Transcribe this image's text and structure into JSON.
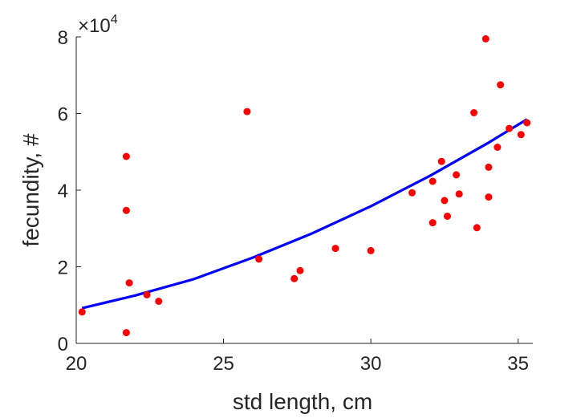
{
  "chart_data": {
    "type": "scatter",
    "title": "",
    "xlabel": "std length, cm",
    "ylabel": "fecundity, #",
    "xlim": [
      20,
      35.5
    ],
    "ylim": [
      0,
      80000
    ],
    "xticks": [
      20,
      25,
      30,
      35
    ],
    "yticks": [
      0,
      20000,
      40000,
      60000,
      80000
    ],
    "ytick_labels": [
      "0",
      "2",
      "4",
      "6",
      "8"
    ],
    "y_exponent_prefix": "×10",
    "y_exponent_power": "4",
    "grid": false,
    "legend": "none",
    "series": [
      {
        "kind": "scatter",
        "color": "#ff0000",
        "points": [
          [
            20.2,
            8200
          ],
          [
            21.7,
            2800
          ],
          [
            21.7,
            34700
          ],
          [
            21.7,
            48800
          ],
          [
            21.8,
            15800
          ],
          [
            22.4,
            12700
          ],
          [
            22.8,
            11000
          ],
          [
            25.8,
            60500
          ],
          [
            26.2,
            22000
          ],
          [
            27.4,
            16900
          ],
          [
            27.6,
            19000
          ],
          [
            28.8,
            24800
          ],
          [
            30.0,
            24200
          ],
          [
            31.4,
            39300
          ],
          [
            32.1,
            31500
          ],
          [
            32.1,
            42300
          ],
          [
            32.4,
            47500
          ],
          [
            32.5,
            37300
          ],
          [
            32.6,
            33200
          ],
          [
            32.9,
            44000
          ],
          [
            33.0,
            39000
          ],
          [
            33.5,
            60200
          ],
          [
            33.6,
            30200
          ],
          [
            33.9,
            79500
          ],
          [
            34.0,
            46000
          ],
          [
            34.0,
            38200
          ],
          [
            34.3,
            51200
          ],
          [
            34.4,
            67500
          ],
          [
            34.7,
            56100
          ],
          [
            35.1,
            54500
          ],
          [
            35.3,
            57600
          ]
        ]
      },
      {
        "kind": "line",
        "color": "#0000ff",
        "fit": "exponential",
        "points": [
          [
            20.2,
            9200
          ],
          [
            22,
            12500
          ],
          [
            24,
            16800
          ],
          [
            26,
            22400
          ],
          [
            28,
            28700
          ],
          [
            30,
            35800
          ],
          [
            32,
            43700
          ],
          [
            34,
            52400
          ],
          [
            35.3,
            58500
          ]
        ]
      }
    ]
  }
}
